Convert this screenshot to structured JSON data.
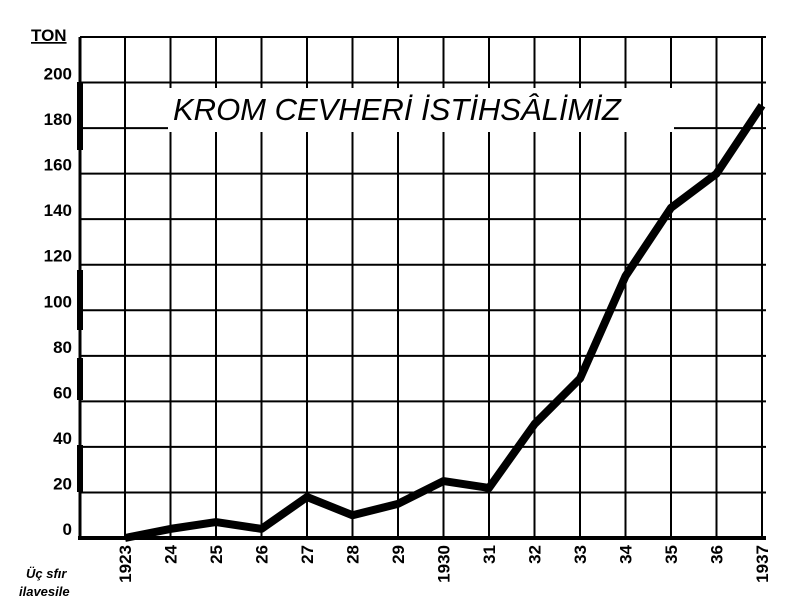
{
  "chart_data": {
    "type": "line",
    "title": "KROM CEVHERİ İSTİHSÂLİMİZ",
    "ylabel": "TON",
    "note": [
      "Üç sfır",
      "ilavesile"
    ],
    "x": [
      "1923",
      "24",
      "25",
      "26",
      "27",
      "28",
      "29",
      "1930",
      "31",
      "32",
      "33",
      "34",
      "35",
      "36",
      "1937"
    ],
    "yticks": [
      "0",
      "20",
      "40",
      "60",
      "80",
      "100",
      "120",
      "140",
      "160",
      "180",
      "200"
    ],
    "ylim": [
      0,
      220
    ],
    "grid": true,
    "series": [
      {
        "values": [
          0,
          4,
          7,
          4,
          18,
          10,
          15,
          25,
          22,
          50,
          70,
          115,
          145,
          160,
          190
        ],
        "color": "#000000"
      }
    ]
  }
}
